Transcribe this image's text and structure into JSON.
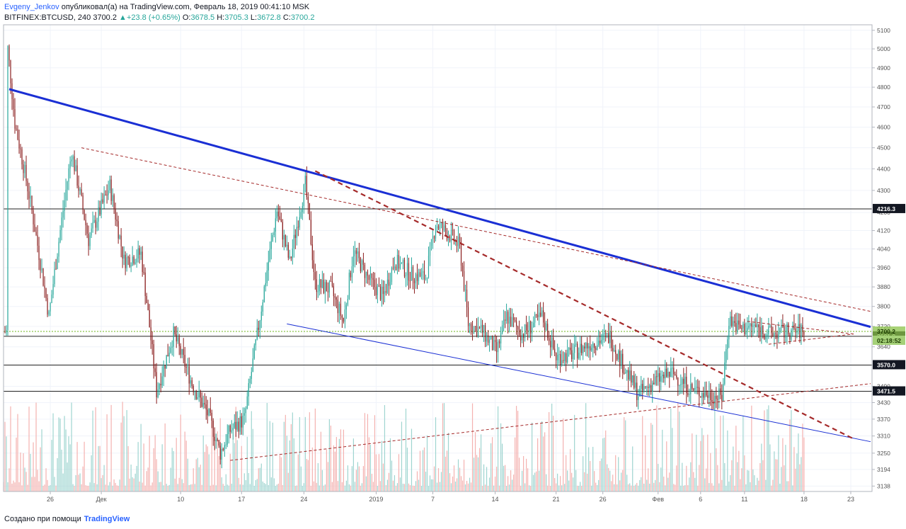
{
  "header": {
    "author": "Evgeny_Jenkov",
    "published_text": "опубликовал(а) на TradingView.com, Февраль 18, 2019 00:41:10 MSK",
    "symbol": "BITFINEX:BTCUSD, 240",
    "last": "3700.2",
    "change": "+23.8 (+0.65%)",
    "o_label": "O:",
    "o_value": "3678.5",
    "h_label": "H:",
    "h_value": "3705.3",
    "l_label": "L:",
    "l_value": "3672.8",
    "c_label": "C:",
    "c_value": "3700.2"
  },
  "footer": {
    "created_text": "Создано при помощи",
    "brand": "TradingView"
  },
  "colors": {
    "up": "#26a69a",
    "down": "#8b1e1e",
    "vol_up": "#9fd5d0",
    "vol_down": "#f4b2b0",
    "trend_blue": "#1a2fd4",
    "trend_red": "#a52a2a",
    "last_price": "#8bc34a",
    "grid": "#f0f3fa"
  },
  "chart_data": {
    "type": "candlestick",
    "symbol": "BITFINEX:BTCUSD",
    "timeframe": "240",
    "y_scale": "log",
    "ylim": [
      3120,
      5130
    ],
    "y_ticks": [
      3138,
      3194,
      3250,
      3310,
      3370,
      3430,
      3490,
      3570,
      3640,
      3720,
      3800,
      3880,
      3960,
      4040,
      4120,
      4200,
      4300,
      4400,
      4500,
      4600,
      4700,
      4800,
      4900,
      5000,
      5100
    ],
    "x_tick_labels": [
      "26",
      "Дек",
      "10",
      "17",
      "24",
      "2019",
      "7",
      "14",
      "21",
      "26",
      "Фев",
      "6",
      "11",
      "18",
      "23"
    ],
    "x_range_bars": [
      0,
      613
    ],
    "x_tick_bars": [
      33,
      69,
      125,
      168,
      212,
      263,
      303,
      347,
      390,
      423,
      462,
      492,
      523,
      565,
      598
    ],
    "key_points": [
      {
        "bar": 3,
        "price": 5000
      },
      {
        "bar": 8,
        "price": 4620
      },
      {
        "bar": 18,
        "price": 4280
      },
      {
        "bar": 32,
        "price": 3760
      },
      {
        "bar": 48,
        "price": 4480
      },
      {
        "bar": 60,
        "price": 4080
      },
      {
        "bar": 75,
        "price": 4320
      },
      {
        "bar": 85,
        "price": 3990
      },
      {
        "bar": 97,
        "price": 4020
      },
      {
        "bar": 108,
        "price": 3470
      },
      {
        "bar": 120,
        "price": 3690
      },
      {
        "bar": 133,
        "price": 3500
      },
      {
        "bar": 145,
        "price": 3380
      },
      {
        "bar": 153,
        "price": 3250
      },
      {
        "bar": 160,
        "price": 3330
      },
      {
        "bar": 170,
        "price": 3370
      },
      {
        "bar": 180,
        "price": 3720
      },
      {
        "bar": 186,
        "price": 3950
      },
      {
        "bar": 193,
        "price": 4210
      },
      {
        "bar": 202,
        "price": 3980
      },
      {
        "bar": 213,
        "price": 4330
      },
      {
        "bar": 220,
        "price": 3890
      },
      {
        "bar": 231,
        "price": 3870
      },
      {
        "bar": 240,
        "price": 3740
      },
      {
        "bar": 247,
        "price": 4030
      },
      {
        "bar": 258,
        "price": 3910
      },
      {
        "bar": 268,
        "price": 3840
      },
      {
        "bar": 276,
        "price": 3990
      },
      {
        "bar": 288,
        "price": 3930
      },
      {
        "bar": 298,
        "price": 3920
      },
      {
        "bar": 305,
        "price": 4150
      },
      {
        "bar": 315,
        "price": 4100
      },
      {
        "bar": 322,
        "price": 4050
      },
      {
        "bar": 328,
        "price": 3730
      },
      {
        "bar": 338,
        "price": 3700
      },
      {
        "bar": 348,
        "price": 3620
      },
      {
        "bar": 355,
        "price": 3760
      },
      {
        "bar": 366,
        "price": 3690
      },
      {
        "bar": 380,
        "price": 3760
      },
      {
        "bar": 390,
        "price": 3600
      },
      {
        "bar": 400,
        "price": 3610
      },
      {
        "bar": 413,
        "price": 3650
      },
      {
        "bar": 428,
        "price": 3680
      },
      {
        "bar": 438,
        "price": 3560
      },
      {
        "bar": 448,
        "price": 3460
      },
      {
        "bar": 460,
        "price": 3510
      },
      {
        "bar": 472,
        "price": 3540
      },
      {
        "bar": 485,
        "price": 3480
      },
      {
        "bar": 497,
        "price": 3460
      },
      {
        "bar": 507,
        "price": 3450
      },
      {
        "bar": 512,
        "price": 3750
      },
      {
        "bar": 520,
        "price": 3710
      },
      {
        "bar": 530,
        "price": 3720
      },
      {
        "bar": 542,
        "price": 3690
      },
      {
        "bar": 555,
        "price": 3700
      },
      {
        "bar": 565,
        "price": 3700
      }
    ],
    "horizontal_levels": [
      {
        "price": 4216.3,
        "label": "4216.3",
        "style": "solid"
      },
      {
        "price": 3681.0,
        "label": "3681.0",
        "style": "solid"
      },
      {
        "price": 3570.0,
        "label": "3570.0",
        "style": "solid"
      },
      {
        "price": 3471.5,
        "label": "3471.5",
        "style": "solid"
      },
      {
        "price": 3700.2,
        "label": "3700.2",
        "style": "dotted",
        "countdown": "02:18:52"
      }
    ],
    "trendlines": [
      {
        "name": "",
        "style": "solid-thick",
        "color": "blue",
        "from": {
          "bar": 4,
          "price": 4790
        },
        "to": {
          "bar": 612,
          "price": 3718
        }
      },
      {
        "name": "",
        "style": "solid-thin",
        "color": "blue",
        "from": {
          "bar": 200,
          "price": 3730
        },
        "to": {
          "bar": 612,
          "price": 3290
        }
      },
      {
        "name": "",
        "style": "dashed-thin",
        "color": "red",
        "from": {
          "bar": 55,
          "price": 4500
        },
        "to": {
          "bar": 612,
          "price": 3780
        }
      },
      {
        "name": "",
        "style": "dashed-thick",
        "color": "red",
        "from": {
          "bar": 220,
          "price": 4390
        },
        "to": {
          "bar": 600,
          "price": 3300
        }
      },
      {
        "name": "",
        "style": "dashed-thin",
        "color": "red",
        "from": {
          "bar": 160,
          "price": 3225
        },
        "to": {
          "bar": 612,
          "price": 3500
        }
      },
      {
        "name": "",
        "style": "dashed-thin",
        "color": "red",
        "from": {
          "bar": 525,
          "price": 3740
        },
        "to": {
          "bar": 600,
          "price": 3690
        }
      },
      {
        "name": "",
        "style": "dashed-thin",
        "color": "red",
        "from": {
          "bar": 540,
          "price": 3650
        },
        "to": {
          "bar": 600,
          "price": 3690
        }
      }
    ]
  }
}
